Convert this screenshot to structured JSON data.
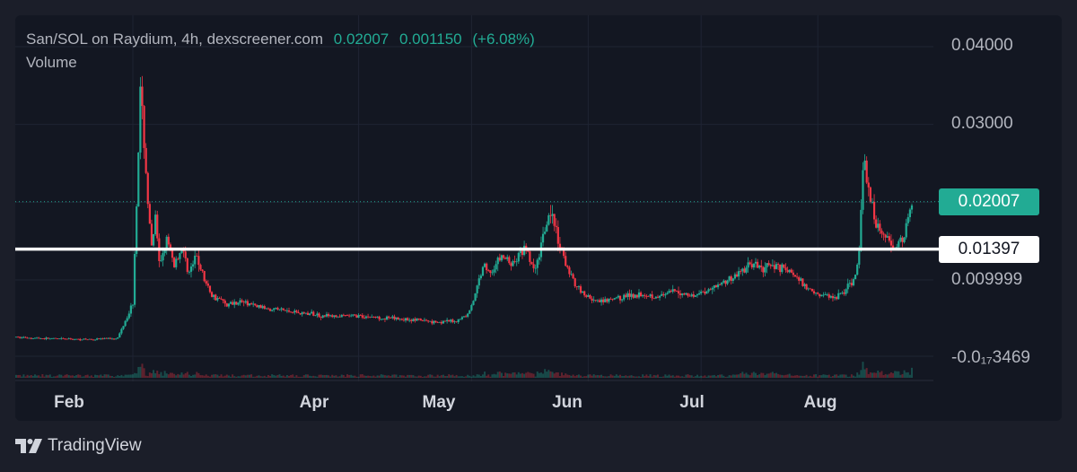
{
  "header": {
    "pair": "San/SOL on Raydium, 4h, dexscreener.com",
    "price": "0.02007",
    "change_abs": "0.001150",
    "change_pct": "(+6.08%)",
    "volume_label": "Volume"
  },
  "tags": {
    "current": "0.02007",
    "line": "0.01397"
  },
  "brand": {
    "name": "TradingView",
    "icon": "tradingview-logo-icon"
  },
  "colors": {
    "up": "#22ab94",
    "down": "#f23645",
    "background": "#131722",
    "text": "#b2b5be"
  },
  "chart_data": {
    "type": "line",
    "title": "San/SOL on Raydium, 4h, dexscreener.com",
    "ylim": [
      -3.469e-07,
      0.043
    ],
    "y_ticks": [
      "0.04000",
      "0.03000",
      "0.009999",
      "-0.0₁₇3469"
    ],
    "y_tick_values": [
      0.04,
      0.03,
      0.01,
      -3.469e-07
    ],
    "x_ticks": [
      "Feb",
      "Apr",
      "May",
      "Jun",
      "Jul",
      "Aug"
    ],
    "x_tick_dates": [
      "2024-02-01",
      "2024-04-01",
      "2024-05-01",
      "2024-06-01",
      "2024-07-01",
      "2024-08-01"
    ],
    "x_range": [
      "2024-01-01",
      "2024-08-26"
    ],
    "current_price": 0.02007,
    "horizontal_line": 0.01397,
    "legend": "top-left",
    "grid": true,
    "series": [
      {
        "x": [
          "2024-01-01",
          "2024-01-10",
          "2024-01-20",
          "2024-01-28",
          "2024-02-01",
          "2024-02-02",
          "2024-02-03",
          "2024-02-04",
          "2024-02-05",
          "2024-02-06",
          "2024-02-07",
          "2024-02-08",
          "2024-02-10",
          "2024-02-12",
          "2024-02-14",
          "2024-02-16",
          "2024-02-18",
          "2024-02-20",
          "2024-02-22",
          "2024-02-24",
          "2024-02-26",
          "2024-03-01",
          "2024-03-05",
          "2024-03-10",
          "2024-03-15",
          "2024-03-20",
          "2024-03-25",
          "2024-04-01",
          "2024-04-08",
          "2024-04-15",
          "2024-04-22",
          "2024-04-27",
          "2024-04-30",
          "2024-05-02",
          "2024-05-04",
          "2024-05-06",
          "2024-05-09",
          "2024-05-12",
          "2024-05-15",
          "2024-05-18",
          "2024-05-20",
          "2024-05-22",
          "2024-05-24",
          "2024-05-26",
          "2024-05-28",
          "2024-05-31",
          "2024-06-04",
          "2024-06-08",
          "2024-06-12",
          "2024-06-16",
          "2024-06-20",
          "2024-06-24",
          "2024-06-28",
          "2024-07-02",
          "2024-07-06",
          "2024-07-10",
          "2024-07-14",
          "2024-07-18",
          "2024-07-21",
          "2024-07-25",
          "2024-07-29",
          "2024-08-02",
          "2024-08-06",
          "2024-08-09",
          "2024-08-11",
          "2024-08-12",
          "2024-08-13",
          "2024-08-14",
          "2024-08-16",
          "2024-08-18",
          "2024-08-20",
          "2024-08-22",
          "2024-08-24",
          "2024-08-26"
        ],
        "y": [
          0.0025,
          0.0023,
          0.0022,
          0.0024,
          0.007,
          0.02,
          0.034,
          0.028,
          0.02,
          0.014,
          0.018,
          0.012,
          0.015,
          0.012,
          0.014,
          0.011,
          0.013,
          0.01,
          0.008,
          0.0075,
          0.0068,
          0.0072,
          0.0065,
          0.0062,
          0.0058,
          0.0055,
          0.0052,
          0.0053,
          0.005,
          0.0048,
          0.0045,
          0.0046,
          0.0055,
          0.008,
          0.012,
          0.011,
          0.013,
          0.012,
          0.014,
          0.011,
          0.016,
          0.019,
          0.015,
          0.012,
          0.01,
          0.008,
          0.007,
          0.0075,
          0.008,
          0.0082,
          0.0078,
          0.0085,
          0.008,
          0.0085,
          0.0095,
          0.0105,
          0.012,
          0.0115,
          0.012,
          0.011,
          0.009,
          0.008,
          0.0078,
          0.009,
          0.0105,
          0.014,
          0.025,
          0.023,
          0.018,
          0.016,
          0.015,
          0.0145,
          0.0155,
          0.02007
        ]
      }
    ]
  }
}
